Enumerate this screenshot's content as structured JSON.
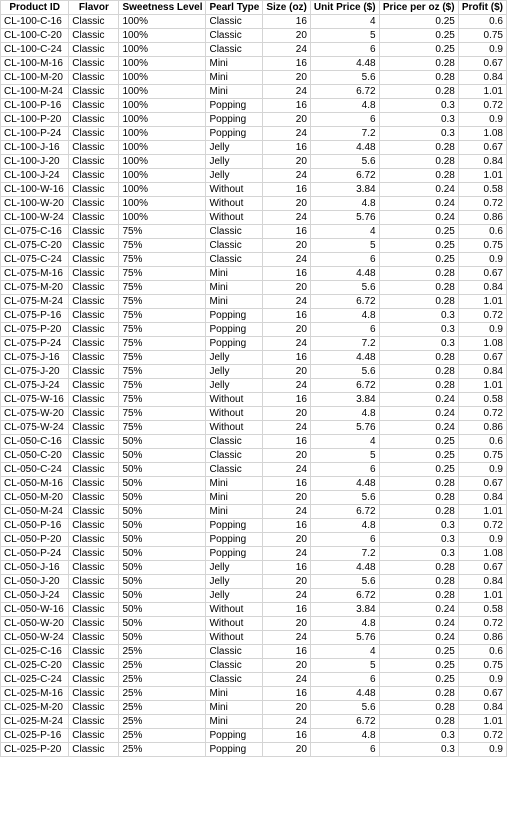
{
  "columns": [
    "Product ID",
    "Flavor",
    "Sweetness Level",
    "Pearl Type",
    "Size (oz)",
    "Unit Price ($)",
    "Price per oz ($)",
    "Profit ($)"
  ],
  "rows": [
    [
      "CL-100-C-16",
      "Classic",
      "100%",
      "Classic",
      "16",
      "4",
      "0.25",
      "0.6"
    ],
    [
      "CL-100-C-20",
      "Classic",
      "100%",
      "Classic",
      "20",
      "5",
      "0.25",
      "0.75"
    ],
    [
      "CL-100-C-24",
      "Classic",
      "100%",
      "Classic",
      "24",
      "6",
      "0.25",
      "0.9"
    ],
    [
      "CL-100-M-16",
      "Classic",
      "100%",
      "Mini",
      "16",
      "4.48",
      "0.28",
      "0.67"
    ],
    [
      "CL-100-M-20",
      "Classic",
      "100%",
      "Mini",
      "20",
      "5.6",
      "0.28",
      "0.84"
    ],
    [
      "CL-100-M-24",
      "Classic",
      "100%",
      "Mini",
      "24",
      "6.72",
      "0.28",
      "1.01"
    ],
    [
      "CL-100-P-16",
      "Classic",
      "100%",
      "Popping",
      "16",
      "4.8",
      "0.3",
      "0.72"
    ],
    [
      "CL-100-P-20",
      "Classic",
      "100%",
      "Popping",
      "20",
      "6",
      "0.3",
      "0.9"
    ],
    [
      "CL-100-P-24",
      "Classic",
      "100%",
      "Popping",
      "24",
      "7.2",
      "0.3",
      "1.08"
    ],
    [
      "CL-100-J-16",
      "Classic",
      "100%",
      "Jelly",
      "16",
      "4.48",
      "0.28",
      "0.67"
    ],
    [
      "CL-100-J-20",
      "Classic",
      "100%",
      "Jelly",
      "20",
      "5.6",
      "0.28",
      "0.84"
    ],
    [
      "CL-100-J-24",
      "Classic",
      "100%",
      "Jelly",
      "24",
      "6.72",
      "0.28",
      "1.01"
    ],
    [
      "CL-100-W-16",
      "Classic",
      "100%",
      "Without",
      "16",
      "3.84",
      "0.24",
      "0.58"
    ],
    [
      "CL-100-W-20",
      "Classic",
      "100%",
      "Without",
      "20",
      "4.8",
      "0.24",
      "0.72"
    ],
    [
      "CL-100-W-24",
      "Classic",
      "100%",
      "Without",
      "24",
      "5.76",
      "0.24",
      "0.86"
    ],
    [
      "CL-075-C-16",
      "Classic",
      "75%",
      "Classic",
      "16",
      "4",
      "0.25",
      "0.6"
    ],
    [
      "CL-075-C-20",
      "Classic",
      "75%",
      "Classic",
      "20",
      "5",
      "0.25",
      "0.75"
    ],
    [
      "CL-075-C-24",
      "Classic",
      "75%",
      "Classic",
      "24",
      "6",
      "0.25",
      "0.9"
    ],
    [
      "CL-075-M-16",
      "Classic",
      "75%",
      "Mini",
      "16",
      "4.48",
      "0.28",
      "0.67"
    ],
    [
      "CL-075-M-20",
      "Classic",
      "75%",
      "Mini",
      "20",
      "5.6",
      "0.28",
      "0.84"
    ],
    [
      "CL-075-M-24",
      "Classic",
      "75%",
      "Mini",
      "24",
      "6.72",
      "0.28",
      "1.01"
    ],
    [
      "CL-075-P-16",
      "Classic",
      "75%",
      "Popping",
      "16",
      "4.8",
      "0.3",
      "0.72"
    ],
    [
      "CL-075-P-20",
      "Classic",
      "75%",
      "Popping",
      "20",
      "6",
      "0.3",
      "0.9"
    ],
    [
      "CL-075-P-24",
      "Classic",
      "75%",
      "Popping",
      "24",
      "7.2",
      "0.3",
      "1.08"
    ],
    [
      "CL-075-J-16",
      "Classic",
      "75%",
      "Jelly",
      "16",
      "4.48",
      "0.28",
      "0.67"
    ],
    [
      "CL-075-J-20",
      "Classic",
      "75%",
      "Jelly",
      "20",
      "5.6",
      "0.28",
      "0.84"
    ],
    [
      "CL-075-J-24",
      "Classic",
      "75%",
      "Jelly",
      "24",
      "6.72",
      "0.28",
      "1.01"
    ],
    [
      "CL-075-W-16",
      "Classic",
      "75%",
      "Without",
      "16",
      "3.84",
      "0.24",
      "0.58"
    ],
    [
      "CL-075-W-20",
      "Classic",
      "75%",
      "Without",
      "20",
      "4.8",
      "0.24",
      "0.72"
    ],
    [
      "CL-075-W-24",
      "Classic",
      "75%",
      "Without",
      "24",
      "5.76",
      "0.24",
      "0.86"
    ],
    [
      "CL-050-C-16",
      "Classic",
      "50%",
      "Classic",
      "16",
      "4",
      "0.25",
      "0.6"
    ],
    [
      "CL-050-C-20",
      "Classic",
      "50%",
      "Classic",
      "20",
      "5",
      "0.25",
      "0.75"
    ],
    [
      "CL-050-C-24",
      "Classic",
      "50%",
      "Classic",
      "24",
      "6",
      "0.25",
      "0.9"
    ],
    [
      "CL-050-M-16",
      "Classic",
      "50%",
      "Mini",
      "16",
      "4.48",
      "0.28",
      "0.67"
    ],
    [
      "CL-050-M-20",
      "Classic",
      "50%",
      "Mini",
      "20",
      "5.6",
      "0.28",
      "0.84"
    ],
    [
      "CL-050-M-24",
      "Classic",
      "50%",
      "Mini",
      "24",
      "6.72",
      "0.28",
      "1.01"
    ],
    [
      "CL-050-P-16",
      "Classic",
      "50%",
      "Popping",
      "16",
      "4.8",
      "0.3",
      "0.72"
    ],
    [
      "CL-050-P-20",
      "Classic",
      "50%",
      "Popping",
      "20",
      "6",
      "0.3",
      "0.9"
    ],
    [
      "CL-050-P-24",
      "Classic",
      "50%",
      "Popping",
      "24",
      "7.2",
      "0.3",
      "1.08"
    ],
    [
      "CL-050-J-16",
      "Classic",
      "50%",
      "Jelly",
      "16",
      "4.48",
      "0.28",
      "0.67"
    ],
    [
      "CL-050-J-20",
      "Classic",
      "50%",
      "Jelly",
      "20",
      "5.6",
      "0.28",
      "0.84"
    ],
    [
      "CL-050-J-24",
      "Classic",
      "50%",
      "Jelly",
      "24",
      "6.72",
      "0.28",
      "1.01"
    ],
    [
      "CL-050-W-16",
      "Classic",
      "50%",
      "Without",
      "16",
      "3.84",
      "0.24",
      "0.58"
    ],
    [
      "CL-050-W-20",
      "Classic",
      "50%",
      "Without",
      "20",
      "4.8",
      "0.24",
      "0.72"
    ],
    [
      "CL-050-W-24",
      "Classic",
      "50%",
      "Without",
      "24",
      "5.76",
      "0.24",
      "0.86"
    ],
    [
      "CL-025-C-16",
      "Classic",
      "25%",
      "Classic",
      "16",
      "4",
      "0.25",
      "0.6"
    ],
    [
      "CL-025-C-20",
      "Classic",
      "25%",
      "Classic",
      "20",
      "5",
      "0.25",
      "0.75"
    ],
    [
      "CL-025-C-24",
      "Classic",
      "25%",
      "Classic",
      "24",
      "6",
      "0.25",
      "0.9"
    ],
    [
      "CL-025-M-16",
      "Classic",
      "25%",
      "Mini",
      "16",
      "4.48",
      "0.28",
      "0.67"
    ],
    [
      "CL-025-M-20",
      "Classic",
      "25%",
      "Mini",
      "20",
      "5.6",
      "0.28",
      "0.84"
    ],
    [
      "CL-025-M-24",
      "Classic",
      "25%",
      "Mini",
      "24",
      "6.72",
      "0.28",
      "1.01"
    ],
    [
      "CL-025-P-16",
      "Classic",
      "25%",
      "Popping",
      "16",
      "4.8",
      "0.3",
      "0.72"
    ],
    [
      "CL-025-P-20",
      "Classic",
      "25%",
      "Popping",
      "20",
      "6",
      "0.3",
      "0.9"
    ]
  ]
}
